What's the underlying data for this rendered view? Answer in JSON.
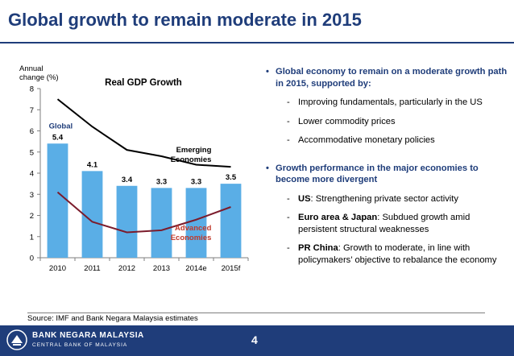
{
  "slide": {
    "title": "Global growth to remain moderate in 2015",
    "source": "Source: IMF and Bank Negara Malaysia estimates",
    "page_number": "4",
    "bank_name": "BANK NEGARA MALAYSIA",
    "bank_subtitle": "CENTRAL BANK OF MALAYSIA"
  },
  "bullets": [
    {
      "text": "Global economy to remain on a moderate growth path in 2015, supported by:",
      "subs": [
        {
          "bold": "",
          "text": "Improving fundamentals, particularly in the US"
        },
        {
          "bold": "",
          "text": "Lower commodity prices"
        },
        {
          "bold": "",
          "text": "Accommodative monetary policies"
        }
      ]
    },
    {
      "text": "Growth performance in the major economies to become more divergent",
      "subs": [
        {
          "bold": "US",
          "text": ": Strengthening private sector activity"
        },
        {
          "bold": "Euro area & Japan",
          "text": ": Subdued growth amid persistent structural weaknesses"
        },
        {
          "bold": "PR China",
          "text": ": Growth to moderate, in line with policymakers’ objective to rebalance the economy"
        }
      ]
    }
  ],
  "chart_data": {
    "type": "bar",
    "title": "Real GDP Growth",
    "ylabel": "Annual change (%)",
    "xlabel": "",
    "ylim": [
      0,
      8
    ],
    "yticks": [
      0,
      1,
      2,
      3,
      4,
      5,
      6,
      7,
      8
    ],
    "categories": [
      "2010",
      "2011",
      "2012",
      "2013",
      "2014e",
      "2015f"
    ],
    "bar_series": {
      "name": "Global",
      "values": [
        5.4,
        4.1,
        3.4,
        3.3,
        3.3,
        3.5
      ],
      "labels": [
        "5.4",
        "4.1",
        "3.4",
        "3.3",
        "3.3",
        "3.5"
      ],
      "color": "#5aaee6"
    },
    "line_series": [
      {
        "name": "Emerging Economies",
        "values": [
          7.5,
          6.2,
          5.1,
          4.8,
          4.4,
          4.3
        ],
        "color": "#000000"
      },
      {
        "name": "Advanced Economies",
        "values": [
          3.1,
          1.7,
          1.2,
          1.3,
          1.8,
          2.4
        ],
        "color": "#7b1c2c"
      }
    ],
    "labels": {
      "global": "Global",
      "emerging": [
        "Emerging",
        "Economies"
      ],
      "advanced": [
        "Advanced",
        "Economies"
      ]
    },
    "ylabel_lines": [
      "Annual",
      "change (%)"
    ],
    "grid": false,
    "colors": {
      "global_label": "#1f3d7a",
      "advanced_label": "#c0392b"
    }
  }
}
